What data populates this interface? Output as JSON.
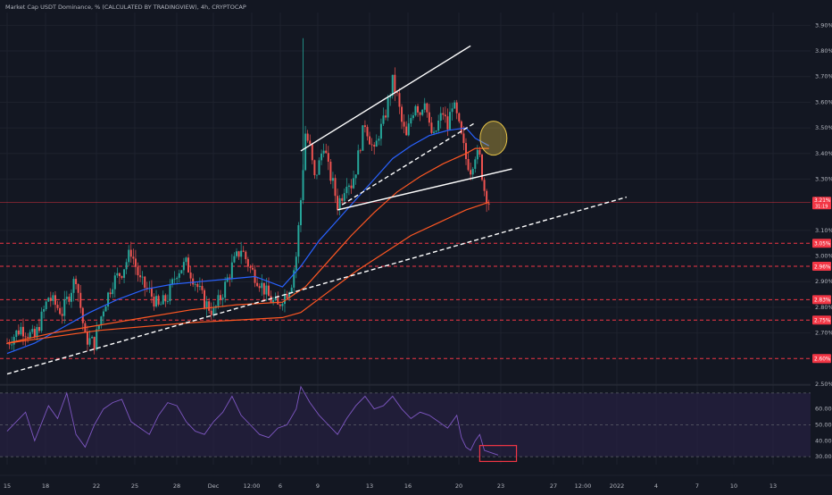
{
  "header": {
    "title": "Market Cap USDT Dominance, % (CALCULATED BY TRADINGVIEW), 4h, CRYPTOCAP"
  },
  "colors": {
    "background": "#131722",
    "grid": "#1e222d",
    "axis_text": "#b2b5be",
    "candle_up": "#26a69a",
    "candle_down": "#ef5350",
    "ema_fast": "#2962ff",
    "ema_slow": "#ff5722",
    "trendline": "#ffffff",
    "support_level": "#f23645",
    "rsi_line": "#7e57c2",
    "rsi_band": "#2a2147",
    "highlight_ellipse": "#e8c547",
    "rsi_box": "#f23645"
  },
  "chart_data": [
    {
      "type": "candlestick",
      "title": "Market Cap USDT Dominance, % (CALCULATED BY TRADINGVIEW), 4h, CRYPTOCAP",
      "ylim": [
        2.5,
        3.95
      ],
      "y_ticks": [
        "3.90%",
        "3.80%",
        "3.70%",
        "3.60%",
        "3.50%",
        "3.40%",
        "3.30%",
        "3.10%",
        "3.00%",
        "2.90%",
        "2.80%",
        "2.70%",
        "2.50%"
      ],
      "x_ticks": [
        "15",
        "18",
        "22",
        "25",
        "28",
        "Dec",
        "12:00",
        "6",
        "9",
        "13",
        "16",
        "20",
        "23",
        "27",
        "12:00",
        "2022",
        "4",
        "7",
        "10",
        "13"
      ],
      "price_label": {
        "value": "3.21%",
        "sub": "31:19"
      },
      "horizontal_levels": [
        {
          "label": "3.05%",
          "value": 3.05
        },
        {
          "label": "2.96%",
          "value": 2.96
        },
        {
          "label": "2.83%",
          "value": 2.83
        },
        {
          "label": "2.75%",
          "value": 2.75
        },
        {
          "label": "2.60%",
          "value": 2.6
        }
      ],
      "close_path": [
        [
          0,
          2.66
        ],
        [
          3,
          2.72
        ],
        [
          6,
          2.68
        ],
        [
          9,
          2.84
        ],
        [
          12,
          2.78
        ],
        [
          15,
          2.92
        ],
        [
          17,
          2.68
        ],
        [
          19,
          2.66
        ],
        [
          21,
          2.8
        ],
        [
          23,
          2.9
        ],
        [
          25,
          2.94
        ],
        [
          27,
          3.02
        ],
        [
          29,
          2.9
        ],
        [
          31,
          2.86
        ],
        [
          33,
          2.8
        ],
        [
          35,
          2.84
        ],
        [
          37,
          2.94
        ],
        [
          39,
          2.97
        ],
        [
          41,
          2.9
        ],
        [
          43,
          2.82
        ],
        [
          45,
          2.78
        ],
        [
          47,
          2.86
        ],
        [
          49,
          2.96
        ],
        [
          51,
          3.03
        ],
        [
          53,
          2.95
        ],
        [
          55,
          2.9
        ],
        [
          57,
          2.84
        ],
        [
          59,
          2.8
        ],
        [
          60,
          2.84
        ],
        [
          61,
          2.86
        ],
        [
          62,
          2.9
        ],
        [
          63,
          3.0
        ],
        [
          64,
          3.22
        ],
        [
          65,
          3.48
        ],
        [
          66,
          3.42
        ],
        [
          67,
          3.3
        ],
        [
          68,
          3.36
        ],
        [
          69,
          3.44
        ],
        [
          70,
          3.34
        ],
        [
          71,
          3.28
        ],
        [
          72,
          3.2
        ],
        [
          73,
          3.24
        ],
        [
          74,
          3.3
        ],
        [
          75,
          3.28
        ],
        [
          76,
          3.34
        ],
        [
          77,
          3.44
        ],
        [
          78,
          3.52
        ],
        [
          79,
          3.46
        ],
        [
          80,
          3.4
        ],
        [
          81,
          3.48
        ],
        [
          82,
          3.52
        ],
        [
          83,
          3.6
        ],
        [
          84,
          3.68
        ],
        [
          85,
          3.62
        ],
        [
          86,
          3.52
        ],
        [
          87,
          3.46
        ],
        [
          88,
          3.54
        ],
        [
          89,
          3.6
        ],
        [
          90,
          3.56
        ],
        [
          91,
          3.62
        ],
        [
          92,
          3.5
        ],
        [
          93,
          3.46
        ],
        [
          94,
          3.52
        ],
        [
          95,
          3.56
        ],
        [
          96,
          3.5
        ],
        [
          97,
          3.6
        ],
        [
          98,
          3.54
        ],
        [
          99,
          3.46
        ],
        [
          100,
          3.38
        ],
        [
          101,
          3.34
        ],
        [
          102,
          3.4
        ],
        [
          103,
          3.38
        ],
        [
          104,
          3.26
        ],
        [
          105,
          3.21
        ]
      ],
      "series": [
        {
          "name": "",
          "role": "ema-fast",
          "values": [
            [
              0,
              2.62
            ],
            [
              6,
              2.66
            ],
            [
              12,
              2.72
            ],
            [
              18,
              2.78
            ],
            [
              24,
              2.83
            ],
            [
              30,
              2.87
            ],
            [
              36,
              2.89
            ],
            [
              42,
              2.9
            ],
            [
              48,
              2.91
            ],
            [
              54,
              2.92
            ],
            [
              60,
              2.88
            ],
            [
              64,
              2.96
            ],
            [
              68,
              3.06
            ],
            [
              72,
              3.14
            ],
            [
              76,
              3.22
            ],
            [
              80,
              3.3
            ],
            [
              84,
              3.38
            ],
            [
              88,
              3.43
            ],
            [
              92,
              3.47
            ],
            [
              96,
              3.49
            ],
            [
              100,
              3.5
            ],
            [
              102,
              3.46
            ],
            [
              105,
              3.43
            ]
          ]
        },
        {
          "name": "",
          "role": "ema-slow",
          "values": [
            [
              0,
              2.66
            ],
            [
              10,
              2.7
            ],
            [
              20,
              2.73
            ],
            [
              30,
              2.76
            ],
            [
              40,
              2.79
            ],
            [
              50,
              2.81
            ],
            [
              60,
              2.82
            ],
            [
              65,
              2.88
            ],
            [
              70,
              2.98
            ],
            [
              75,
              3.08
            ],
            [
              80,
              3.17
            ],
            [
              85,
              3.25
            ],
            [
              90,
              3.31
            ],
            [
              95,
              3.36
            ],
            [
              100,
              3.4
            ],
            [
              102,
              3.42
            ],
            [
              105,
              3.42
            ]
          ]
        },
        {
          "name": "",
          "role": "ema-long",
          "values": [
            [
              0,
              2.66
            ],
            [
              20,
              2.71
            ],
            [
              40,
              2.74
            ],
            [
              60,
              2.76
            ],
            [
              64,
              2.78
            ],
            [
              70,
              2.86
            ],
            [
              76,
              2.94
            ],
            [
              82,
              3.01
            ],
            [
              88,
              3.08
            ],
            [
              94,
              3.13
            ],
            [
              100,
              3.18
            ],
            [
              105,
              3.21
            ]
          ]
        }
      ],
      "annotations": {
        "trendlines": [
          {
            "style": "solid",
            "from": [
              64,
              3.41
            ],
            "to": [
              101,
              3.82
            ]
          },
          {
            "style": "solid",
            "from": [
              72,
              3.18
            ],
            "to": [
              110,
              3.34
            ]
          },
          {
            "style": "dashed",
            "from": [
              73,
              3.2
            ],
            "to": [
              102,
              3.52
            ]
          },
          {
            "style": "dashed",
            "from": [
              0,
              2.54
            ],
            "to": [
              135,
              3.23
            ]
          }
        ],
        "ellipse_at": [
          106,
          3.46
        ]
      }
    },
    {
      "type": "line",
      "title": "RSI",
      "ylim": [
        25,
        75
      ],
      "y_ticks": [
        "60.00",
        "50.00",
        "40.00",
        "30.00"
      ],
      "band": [
        30,
        70
      ],
      "values": [
        [
          0,
          46
        ],
        [
          4,
          58
        ],
        [
          6,
          40
        ],
        [
          9,
          62
        ],
        [
          11,
          54
        ],
        [
          13,
          70
        ],
        [
          15,
          44
        ],
        [
          17,
          36
        ],
        [
          19,
          50
        ],
        [
          21,
          60
        ],
        [
          23,
          64
        ],
        [
          25,
          66
        ],
        [
          27,
          52
        ],
        [
          29,
          48
        ],
        [
          31,
          44
        ],
        [
          33,
          56
        ],
        [
          35,
          64
        ],
        [
          37,
          62
        ],
        [
          39,
          52
        ],
        [
          41,
          46
        ],
        [
          43,
          44
        ],
        [
          45,
          52
        ],
        [
          47,
          58
        ],
        [
          49,
          68
        ],
        [
          51,
          56
        ],
        [
          53,
          50
        ],
        [
          55,
          44
        ],
        [
          57,
          42
        ],
        [
          59,
          48
        ],
        [
          61,
          50
        ],
        [
          63,
          60
        ],
        [
          64,
          74
        ],
        [
          66,
          64
        ],
        [
          68,
          56
        ],
        [
          70,
          50
        ],
        [
          72,
          44
        ],
        [
          74,
          54
        ],
        [
          76,
          62
        ],
        [
          78,
          68
        ],
        [
          80,
          60
        ],
        [
          82,
          62
        ],
        [
          84,
          68
        ],
        [
          86,
          60
        ],
        [
          88,
          54
        ],
        [
          90,
          58
        ],
        [
          92,
          56
        ],
        [
          94,
          52
        ],
        [
          96,
          48
        ],
        [
          98,
          56
        ],
        [
          99,
          42
        ],
        [
          100,
          36
        ],
        [
          101,
          34
        ],
        [
          102,
          40
        ],
        [
          103,
          44
        ],
        [
          104,
          34
        ],
        [
          105,
          33
        ],
        [
          107,
          31
        ]
      ],
      "highlight_box": {
        "x": [
          103,
          111
        ],
        "y": [
          27,
          37
        ]
      }
    }
  ]
}
